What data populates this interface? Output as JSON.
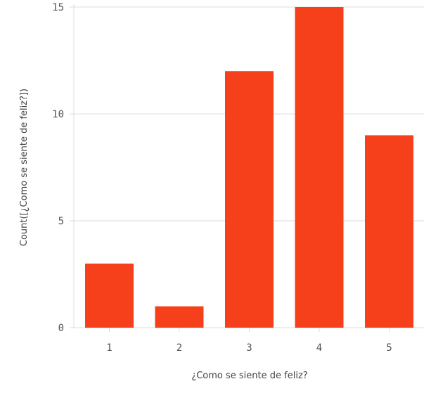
{
  "chart_data": {
    "type": "bar",
    "categories": [
      "1",
      "2",
      "3",
      "4",
      "5"
    ],
    "values": [
      3,
      1,
      12,
      15,
      9
    ],
    "xlabel": "¿Como se siente de feliz?",
    "ylabel": "Count([¿Como se siente de feliz?])",
    "ylim": [
      0,
      15
    ],
    "yticks": [
      0,
      5,
      10,
      15
    ],
    "grid": true,
    "bar_color": "#f5401b",
    "grid_color": "#dcdcdc"
  }
}
